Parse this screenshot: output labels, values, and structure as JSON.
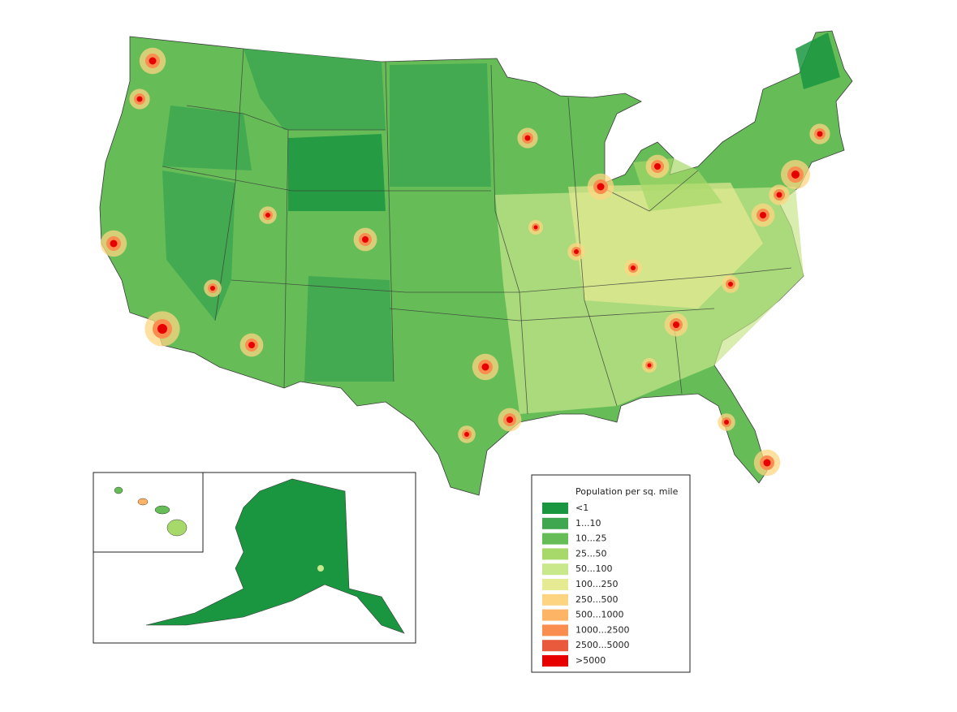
{
  "legend": {
    "title": "Population per sq. mile",
    "items": [
      {
        "label": "<1",
        "color": "#1a9641"
      },
      {
        "label": "1...10",
        "color": "#3ea750"
      },
      {
        "label": "10...25",
        "color": "#66bd58"
      },
      {
        "label": "25...50",
        "color": "#a6d96a"
      },
      {
        "label": "50...100",
        "color": "#c9e78b"
      },
      {
        "label": "100...250",
        "color": "#e6ea93"
      },
      {
        "label": "250...500",
        "color": "#fdd582"
      },
      {
        "label": "500...1000",
        "color": "#fdb464"
      },
      {
        "label": "1000...2500",
        "color": "#f98e50"
      },
      {
        "label": "2500...5000",
        "color": "#e95a3c"
      },
      {
        "label": ">5000",
        "color": "#e60000"
      }
    ]
  }
}
